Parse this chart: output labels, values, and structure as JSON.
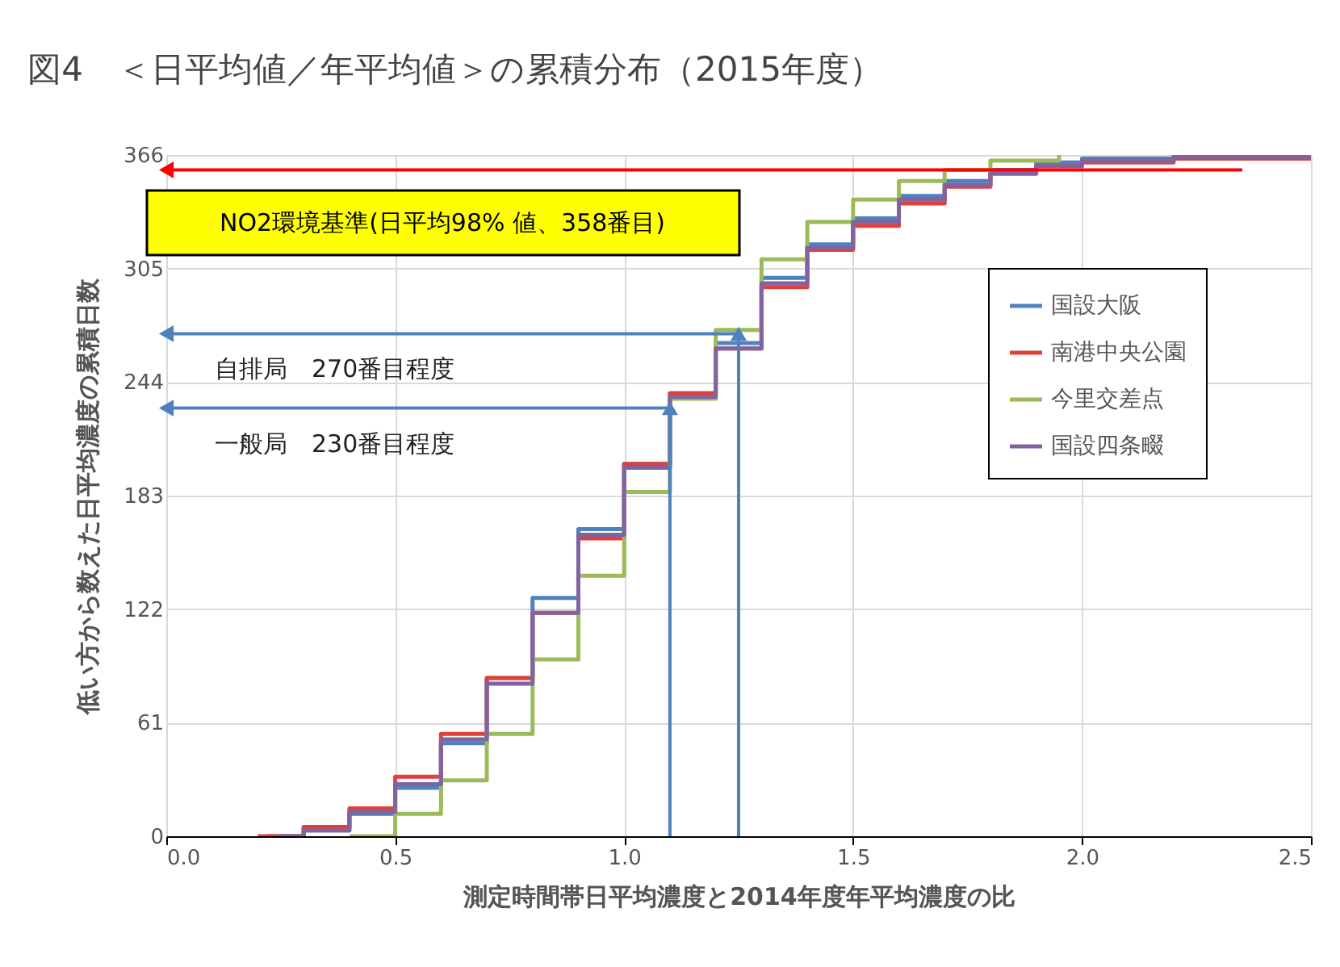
{
  "chart_data": {
    "type": "step",
    "title": "図4　＜日平均値／年平均値＞の累積分布（2015年度）",
    "xlabel": "測定時間帯日平均濃度と2014年度年平均濃度の比",
    "ylabel": "低い方から数えた日平均濃度の累積日数",
    "xlim": [
      0,
      2.5
    ],
    "xticks": [
      {
        "value": 0,
        "label": "0.0"
      },
      {
        "value": 0.5,
        "label": "0.5"
      },
      {
        "value": 1,
        "label": "1.0"
      },
      {
        "value": 1.5,
        "label": "1.5"
      },
      {
        "value": 2,
        "label": "2.0"
      },
      {
        "value": 2.5,
        "label": "2.5"
      }
    ],
    "ylim": [
      0,
      366
    ],
    "yticks": [
      0,
      61,
      122,
      183,
      244,
      305,
      366
    ],
    "grid": true,
    "legend": "top right",
    "series": [
      {
        "name": "国設大阪",
        "color": "#4f81bd",
        "x": [
          0.22,
          0.3,
          0.4,
          0.5,
          0.6,
          0.7,
          0.8,
          0.9,
          1.0,
          1.1,
          1.2,
          1.3,
          1.4,
          1.5,
          1.6,
          1.7,
          1.8,
          1.9,
          2.0,
          2.2
        ],
        "values": [
          0,
          4,
          12,
          26,
          50,
          85,
          128,
          165,
          200,
          238,
          265,
          300,
          318,
          332,
          344,
          352,
          358,
          362,
          364,
          366
        ]
      },
      {
        "name": "南港中央公園",
        "color": "#e0403a",
        "x": [
          0.2,
          0.3,
          0.4,
          0.5,
          0.6,
          0.7,
          0.8,
          0.9,
          1.0,
          1.1,
          1.2,
          1.3,
          1.4,
          1.5,
          1.6,
          1.7,
          1.8,
          1.9,
          2.0,
          2.2,
          2.5
        ],
        "values": [
          0,
          5,
          15,
          32,
          55,
          85,
          120,
          160,
          200,
          238,
          262,
          295,
          315,
          328,
          340,
          349,
          356,
          360,
          362,
          364,
          366
        ]
      },
      {
        "name": "今里交差点",
        "color": "#9bbb59",
        "x": [
          0.4,
          0.5,
          0.6,
          0.7,
          0.8,
          0.9,
          1.0,
          1.1,
          1.2,
          1.3,
          1.4,
          1.5,
          1.6,
          1.7,
          1.8,
          1.95
        ],
        "values": [
          0,
          12,
          30,
          55,
          95,
          140,
          185,
          235,
          272,
          310,
          330,
          342,
          352,
          358,
          363,
          366
        ]
      },
      {
        "name": "国設四条畷",
        "color": "#8064a2",
        "x": [
          0.25,
          0.3,
          0.4,
          0.5,
          0.6,
          0.7,
          0.8,
          0.9,
          1.0,
          1.1,
          1.2,
          1.3,
          1.4,
          1.5,
          1.6,
          1.7,
          1.8,
          1.9,
          2.0,
          2.2,
          2.5
        ],
        "values": [
          0,
          3,
          13,
          28,
          52,
          82,
          120,
          162,
          198,
          236,
          262,
          297,
          316,
          330,
          342,
          350,
          356,
          360,
          363,
          365,
          366
        ]
      }
    ],
    "ref_lines": [
      {
        "axis": "y",
        "value": 358,
        "label": "NO2環境基準(日平均98% 値、358番目)",
        "color": "#ff0000"
      },
      {
        "axis": "y",
        "value": 270,
        "label": "自排局　270番目程度",
        "color": "#4f81bd"
      },
      {
        "axis": "y",
        "value": 230,
        "label": "一般局　230番目程度",
        "color": "#4f81bd"
      },
      {
        "axis": "x",
        "value": 1.25,
        "color": "#4f81bd"
      },
      {
        "axis": "x",
        "value": 1.1,
        "color": "#4f81bd"
      }
    ]
  }
}
